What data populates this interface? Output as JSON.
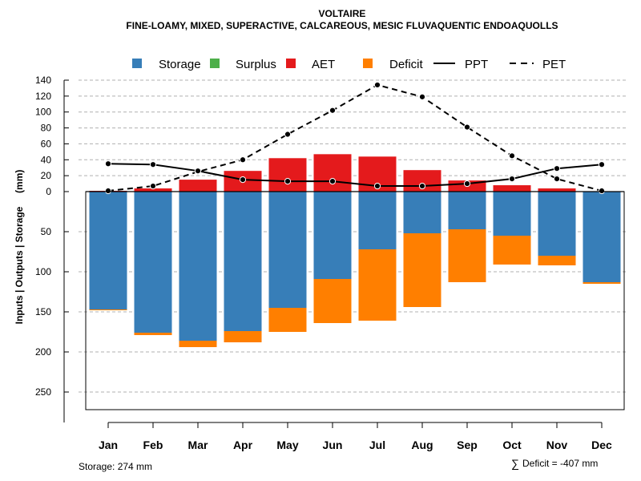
{
  "chart_data": {
    "type": "bar",
    "title": "VOLTAIRE",
    "subtitle": "FINE-LOAMY, MIXED, SUPERACTIVE, CALCAREOUS, MESIC FLUVAQUENTIC ENDOAQUOLLS",
    "ylabel": "Inputs | Outputs | Storage     (mm)",
    "categories": [
      "Jan",
      "Feb",
      "Mar",
      "Apr",
      "May",
      "Jun",
      "Jul",
      "Aug",
      "Sep",
      "Oct",
      "Nov",
      "Dec"
    ],
    "y_upper_ticks": [
      "140",
      "120",
      "100",
      "80",
      "60",
      "40",
      "20",
      "0"
    ],
    "y_lower_ticks": [
      "50",
      "100",
      "150",
      "200",
      "250"
    ],
    "ylim_upper": [
      0,
      140
    ],
    "ylim_lower": [
      0,
      274
    ],
    "series": [
      {
        "name": "Storage",
        "color": "#377EB8",
        "values": [
          147,
          176,
          186,
          174,
          145,
          109,
          72,
          52,
          47,
          55,
          80,
          113
        ]
      },
      {
        "name": "Surplus",
        "color": "#4DAF4A",
        "values": [
          0,
          0,
          0,
          0,
          0,
          0,
          0,
          0,
          0,
          0,
          0,
          0
        ]
      },
      {
        "name": "AET",
        "color": "#E41A1C",
        "values": [
          1,
          4,
          15,
          26,
          42,
          47,
          44,
          27,
          14,
          8,
          4,
          0
        ]
      },
      {
        "name": "Deficit",
        "color": "#FF7F00",
        "values": [
          1,
          3,
          8,
          14,
          30,
          55,
          89,
          92,
          66,
          36,
          12,
          2
        ]
      },
      {
        "name": "PPT",
        "color": "#000000",
        "style": "solid",
        "values": [
          35,
          34,
          26,
          15,
          13,
          13,
          7,
          7,
          10,
          16,
          29,
          34
        ]
      },
      {
        "name": "PET",
        "color": "#000000",
        "style": "dashed",
        "values": [
          1,
          7,
          25,
          40,
          72,
          102,
          134,
          119,
          81,
          45,
          16,
          1
        ]
      }
    ],
    "legend_position": "top",
    "grid": true
  },
  "footer": {
    "storage_label": "Storage: 274 mm",
    "deficit_symbol": "∑",
    "deficit_label": "Deficit = -407 mm"
  }
}
